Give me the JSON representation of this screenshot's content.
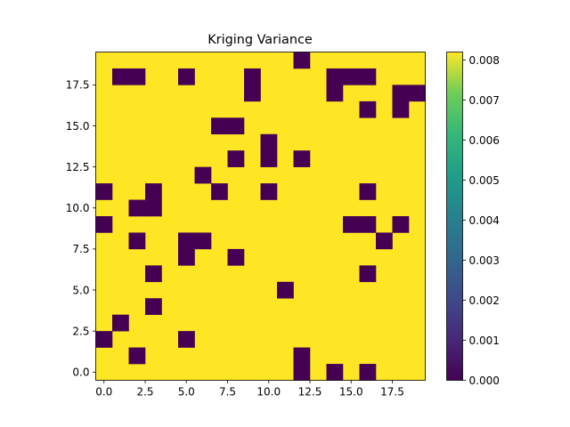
{
  "chart_data": {
    "type": "heatmap",
    "title": "Kriging Variance",
    "xlabel": "",
    "ylabel": "",
    "grid": false,
    "colormap": "viridis",
    "colors": {
      "low": "#440154",
      "high": "#fde725"
    },
    "xlim": [
      -0.5,
      19.5
    ],
    "ylim": [
      -0.5,
      19.5
    ],
    "x_ticks": [
      0,
      2.5,
      5,
      7.5,
      10,
      12.5,
      15,
      17.5
    ],
    "x_tick_labels": [
      "0.0",
      "2.5",
      "5.0",
      "7.5",
      "10.0",
      "12.5",
      "15.0",
      "17.5"
    ],
    "y_ticks": [
      0,
      2.5,
      5,
      7.5,
      10,
      12.5,
      15,
      17.5
    ],
    "y_tick_labels": [
      "0.0",
      "2.5",
      "5.0",
      "7.5",
      "10.0",
      "12.5",
      "15.0",
      "17.5"
    ],
    "colorbar": {
      "min": 0.0,
      "max": 0.0082,
      "ticks": [
        0,
        0.001,
        0.002,
        0.003,
        0.004,
        0.005,
        0.006,
        0.007,
        0.008
      ],
      "tick_labels": [
        "0.000",
        "0.001",
        "0.002",
        "0.003",
        "0.004",
        "0.005",
        "0.006",
        "0.007",
        "0.008"
      ]
    },
    "background_value": 0.0082,
    "zero_value": 0.0,
    "zero_cells": [
      [
        12,
        19
      ],
      [
        1,
        18
      ],
      [
        2,
        18
      ],
      [
        5,
        18
      ],
      [
        9,
        18
      ],
      [
        14,
        18
      ],
      [
        15,
        18
      ],
      [
        16,
        18
      ],
      [
        9,
        17
      ],
      [
        14,
        17
      ],
      [
        18,
        17
      ],
      [
        19,
        17
      ],
      [
        16,
        16
      ],
      [
        18,
        16
      ],
      [
        7,
        15
      ],
      [
        8,
        15
      ],
      [
        10,
        14
      ],
      [
        8,
        13
      ],
      [
        10,
        13
      ],
      [
        12,
        13
      ],
      [
        6,
        12
      ],
      [
        0,
        11
      ],
      [
        3,
        11
      ],
      [
        7,
        11
      ],
      [
        10,
        11
      ],
      [
        16,
        11
      ],
      [
        2,
        10
      ],
      [
        3,
        10
      ],
      [
        0,
        9
      ],
      [
        15,
        9
      ],
      [
        16,
        9
      ],
      [
        18,
        9
      ],
      [
        2,
        8
      ],
      [
        5,
        8
      ],
      [
        6,
        8
      ],
      [
        17,
        8
      ],
      [
        5,
        7
      ],
      [
        8,
        7
      ],
      [
        3,
        6
      ],
      [
        16,
        6
      ],
      [
        11,
        5
      ],
      [
        3,
        4
      ],
      [
        1,
        3
      ],
      [
        0,
        2
      ],
      [
        5,
        2
      ],
      [
        2,
        1
      ],
      [
        12,
        1
      ],
      [
        12,
        0
      ],
      [
        14,
        0
      ],
      [
        16,
        0
      ]
    ]
  }
}
